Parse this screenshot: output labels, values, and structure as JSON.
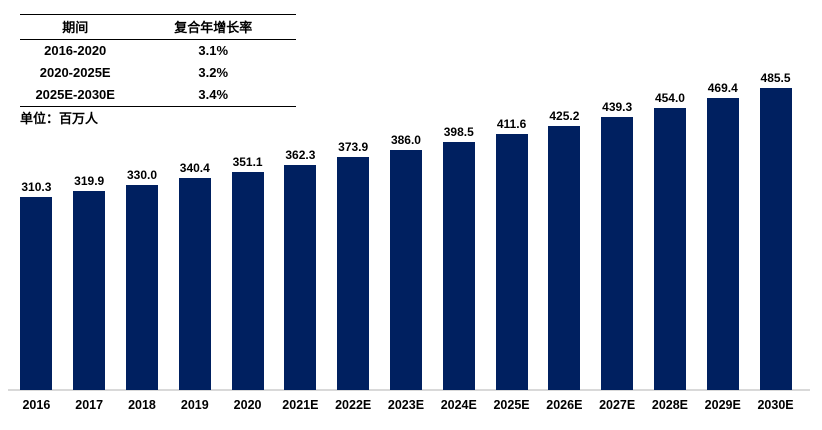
{
  "table": {
    "headers": [
      "期间",
      "复合年增长率"
    ],
    "rows": [
      {
        "period": "2016-2020",
        "cagr": "3.1%"
      },
      {
        "period": "2020-2025E",
        "cagr": "3.2%"
      },
      {
        "period": "2025E-2030E",
        "cagr": "3.4%"
      }
    ]
  },
  "unit_label": "单位：百万人",
  "chart_data": {
    "type": "bar",
    "categories": [
      "2016",
      "2017",
      "2018",
      "2019",
      "2020",
      "2021E",
      "2022E",
      "2023E",
      "2024E",
      "2025E",
      "2026E",
      "2027E",
      "2028E",
      "2029E",
      "2030E"
    ],
    "values": [
      310.3,
      319.9,
      330.0,
      340.4,
      351.1,
      362.3,
      373.9,
      386.0,
      398.5,
      411.6,
      425.2,
      439.3,
      454.0,
      469.4,
      485.5
    ],
    "title": "",
    "xlabel": "",
    "ylabel": "单位：百万人",
    "ylim": [
      0,
      500
    ],
    "grid": false,
    "legend": "none",
    "data_labels": true,
    "bar_color": "#002060",
    "axis_line_color": "#d9d9d9",
    "text_color": "#000000"
  }
}
